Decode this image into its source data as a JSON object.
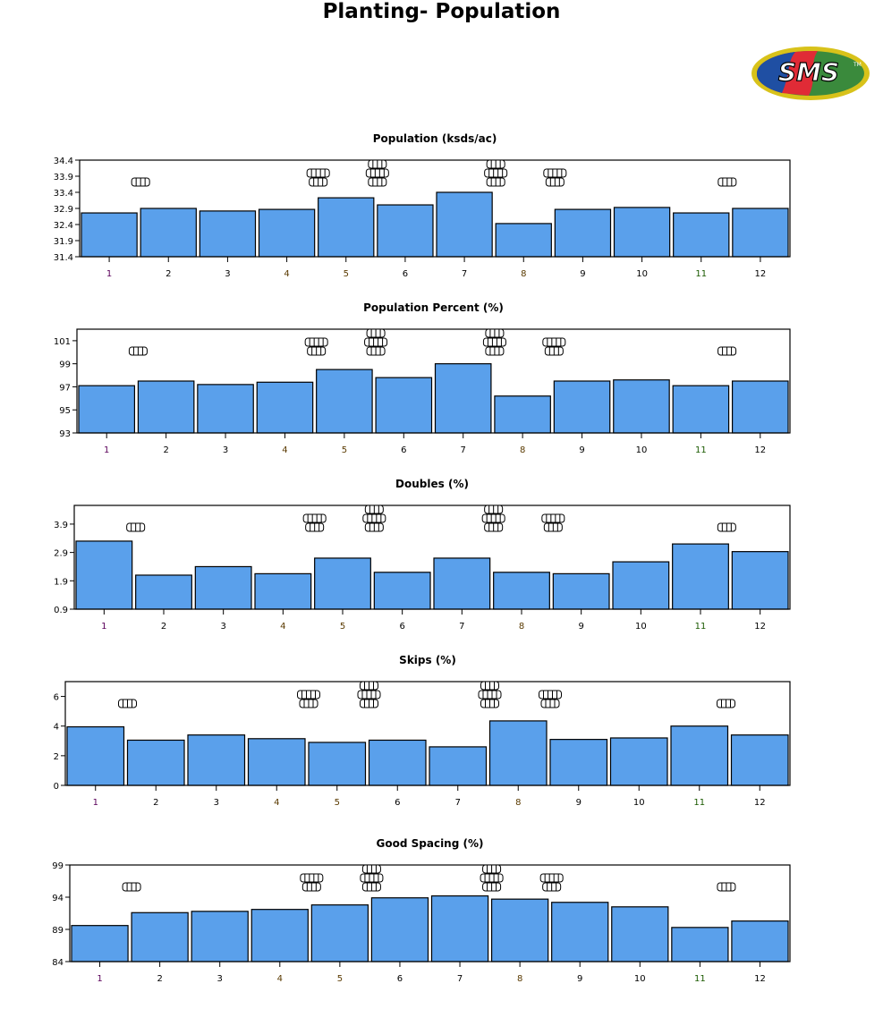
{
  "page": {
    "title": "Planting- Population"
  },
  "logo": {
    "text": "SMS",
    "trademark": "TM",
    "colors": [
      "#1f4fa3",
      "#e02b36",
      "#3a8a3c",
      "#d8c21a"
    ]
  },
  "colors": {
    "bar_fill": "#5aa0eb",
    "bar_stroke": "#000000"
  },
  "chart_data": [
    {
      "type": "bar",
      "title": "Population (ksds/ac)",
      "categories": [
        "1",
        "2",
        "3",
        "4",
        "5",
        "6",
        "7",
        "8",
        "9",
        "10",
        "11",
        "12"
      ],
      "values": [
        32.76,
        32.9,
        32.82,
        32.87,
        33.23,
        33.01,
        33.4,
        32.43,
        32.87,
        32.93,
        32.76,
        32.9
      ],
      "ylim": [
        31.4,
        34.4
      ],
      "yticks": [
        "31.4",
        "31.9",
        "32.4",
        "32.9",
        "33.4",
        "33.9",
        "34.4"
      ],
      "xlabel": "",
      "ylabel": "",
      "grid": false
    },
    {
      "type": "bar",
      "title": "Population Percent (%)",
      "categories": [
        "1",
        "2",
        "3",
        "4",
        "5",
        "6",
        "7",
        "8",
        "9",
        "10",
        "11",
        "12"
      ],
      "values": [
        97.1,
        97.5,
        97.2,
        97.4,
        98.5,
        97.8,
        99.0,
        96.2,
        97.5,
        97.6,
        97.1,
        97.5
      ],
      "ylim": [
        93,
        102
      ],
      "yticks": [
        "93",
        "95",
        "97",
        "99",
        "101"
      ],
      "xlabel": "",
      "ylabel": "",
      "grid": false
    },
    {
      "type": "bar",
      "title": "Doubles (%)",
      "categories": [
        "1",
        "2",
        "3",
        "4",
        "5",
        "6",
        "7",
        "8",
        "9",
        "10",
        "11",
        "12"
      ],
      "values": [
        3.3,
        2.1,
        2.4,
        2.15,
        2.7,
        2.2,
        2.7,
        2.2,
        2.15,
        2.57,
        3.2,
        2.93
      ],
      "ylim": [
        0.9,
        4.56
      ],
      "yticks": [
        "0.9",
        "1.9",
        "2.9",
        "3.9"
      ],
      "xlabel": "",
      "ylabel": "",
      "grid": false
    },
    {
      "type": "bar",
      "title": "Skips (%)",
      "categories": [
        "1",
        "2",
        "3",
        "4",
        "5",
        "6",
        "7",
        "8",
        "9",
        "10",
        "11",
        "12"
      ],
      "values": [
        3.95,
        3.05,
        3.4,
        3.15,
        2.9,
        3.05,
        2.6,
        4.35,
        3.1,
        3.2,
        4.0,
        3.4
      ],
      "ylim": [
        0,
        7
      ],
      "yticks": [
        "0",
        "2",
        "4",
        "6"
      ],
      "xlabel": "",
      "ylabel": "",
      "grid": false
    },
    {
      "type": "bar",
      "title": "Good Spacing (%)",
      "categories": [
        "1",
        "2",
        "3",
        "4",
        "5",
        "6",
        "7",
        "8",
        "9",
        "10",
        "11",
        "12"
      ],
      "values": [
        89.6,
        91.6,
        91.8,
        92.1,
        92.8,
        93.9,
        94.2,
        93.7,
        93.2,
        92.5,
        89.3,
        90.3
      ],
      "ylim": [
        84,
        99
      ],
      "yticks": [
        "84",
        "89",
        "94",
        "99"
      ],
      "xlabel": "",
      "ylabel": "",
      "grid": false
    }
  ]
}
